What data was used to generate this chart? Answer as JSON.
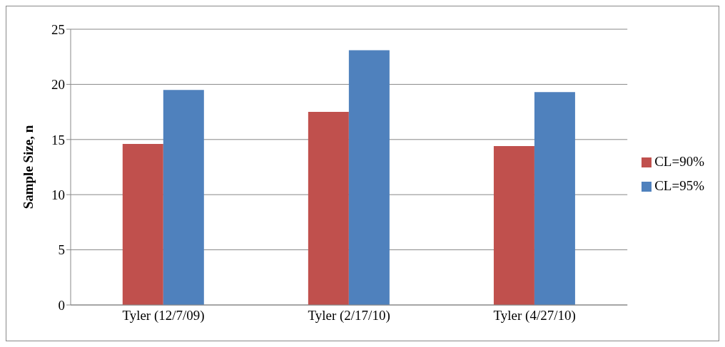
{
  "chart_data": {
    "type": "bar",
    "ylabel": "Sample Size, n",
    "categories": [
      "Tyler (12/7/09)",
      "Tyler (2/17/10)",
      "Tyler (4/27/10)"
    ],
    "series": [
      {
        "name": "CL=90%",
        "color": "#c0504d",
        "values": [
          14.6,
          17.5,
          14.4
        ]
      },
      {
        "name": "CL=95%",
        "color": "#4f81bd",
        "values": [
          19.5,
          23.1,
          19.3
        ]
      }
    ],
    "ylim": [
      0,
      25
    ],
    "yticks": [
      0,
      5,
      10,
      15,
      20,
      25
    ],
    "grid": "y",
    "legend": "right"
  }
}
